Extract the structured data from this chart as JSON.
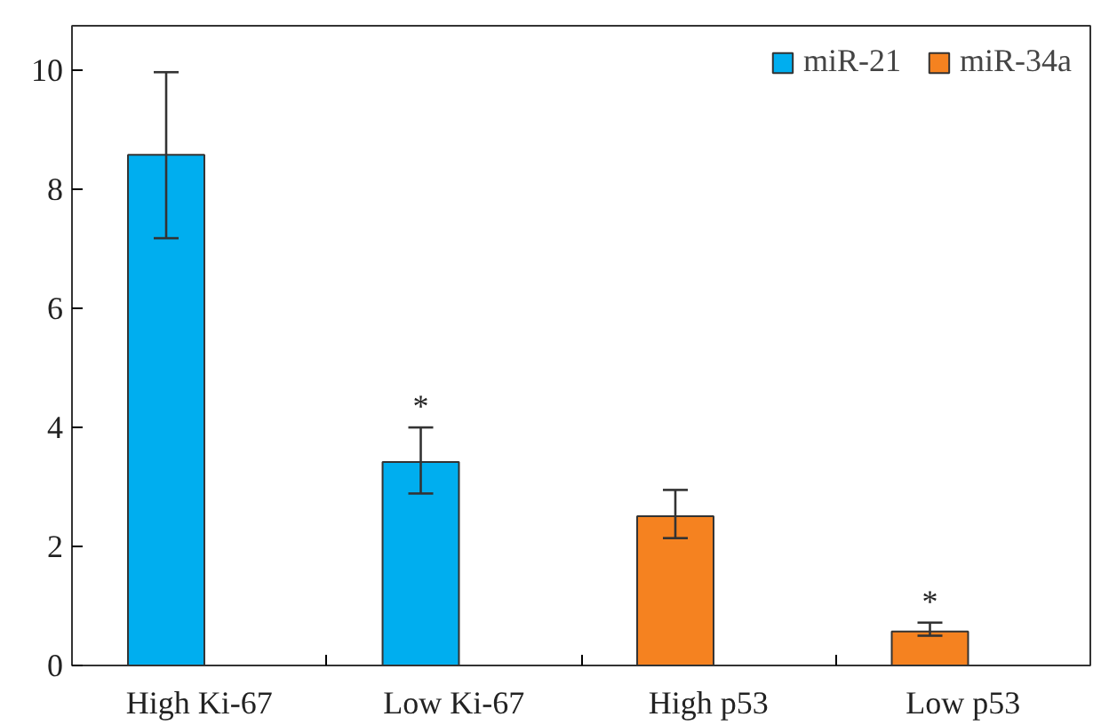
{
  "chart_data": {
    "type": "bar",
    "categories": [
      "High Ki-67",
      "Low Ki-67",
      "High p53",
      "Low p53"
    ],
    "series": [
      {
        "name": "miR-21",
        "color": "#00aeef",
        "values": [
          8.58,
          3.42,
          null,
          null
        ],
        "errors": [
          [
            7.18,
            9.97
          ],
          [
            2.89,
            4.0
          ],
          null,
          null
        ]
      },
      {
        "name": "miR-34a",
        "color": "#f58220",
        "values": [
          null,
          null,
          2.51,
          0.57
        ],
        "errors": [
          null,
          null,
          [
            2.14,
            2.95
          ],
          [
            0.5,
            0.72
          ]
        ]
      }
    ],
    "ylim": [
      0,
      10.75
    ],
    "yticks": [
      0,
      2,
      4,
      6,
      8,
      10
    ],
    "grid": false,
    "legend": "top right",
    "annotations": [
      {
        "text": "*",
        "x": "Low Ki-67",
        "y": 3.42
      },
      {
        "text": "*",
        "x": "Low p53",
        "y": 0.57
      }
    ]
  }
}
